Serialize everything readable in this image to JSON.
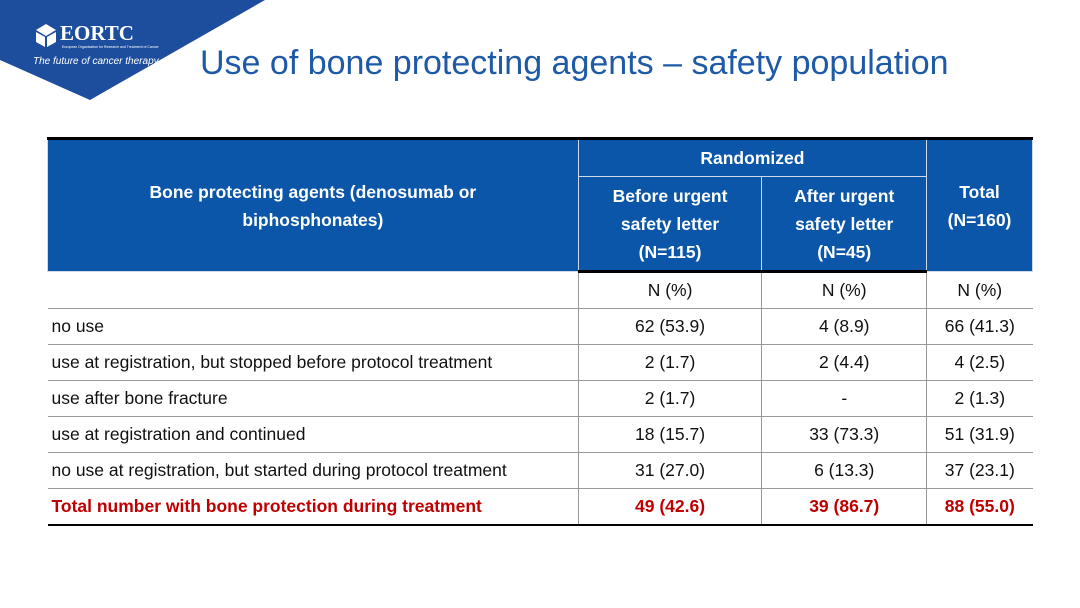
{
  "logo": {
    "name": "EORTC",
    "subtitle": "European Organisation for Research and Treatment of Cancer",
    "tagline": "The future of cancer therapy"
  },
  "title": "Use of bone protecting agents – safety population",
  "table": {
    "header": {
      "first": "Bone protecting agents (denosumab or biphosphonates)",
      "group": "Randomized",
      "columns": [
        "Before urgent safety letter (N=115)",
        "After urgent safety letter (N=45)"
      ],
      "total": "Total (N=160)"
    },
    "rows": [
      [
        "",
        "N (%)",
        "N (%)",
        "N (%)"
      ],
      [
        "no use",
        "62 (53.9)",
        "4 (8.9)",
        "66 (41.3)"
      ],
      [
        "use at registration, but stopped before protocol treatment",
        "2 (1.7)",
        "2 (4.4)",
        "4 (2.5)"
      ],
      [
        "use after bone fracture",
        "2 (1.7)",
        "-",
        "2 (1.3)"
      ],
      [
        "use at registration and continued",
        "18 (15.7)",
        "33 (73.3)",
        "51 (31.9)"
      ],
      [
        "no use at registration, but started during protocol treatment",
        "31 (27.0)",
        "6 (13.3)",
        "37 (23.1)"
      ]
    ],
    "total_row": [
      "Total number with bone protection during treatment",
      "49 (42.6)",
      "39 (86.7)",
      "88 (55.0)"
    ]
  }
}
